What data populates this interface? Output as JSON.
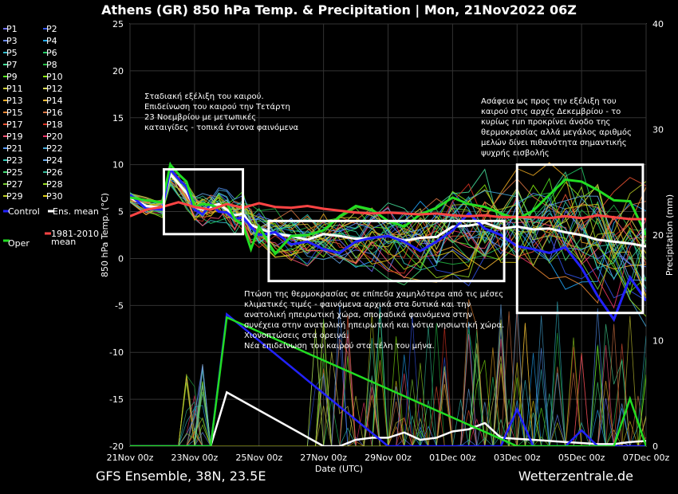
{
  "chart_data": {
    "type": "line",
    "title": "Athens  (GR)  850 hPa Temp. & Precipitation | Mon, 21Nov2022 06Z",
    "xlabel": "Date (UTC)",
    "ylabel": "850 hPa Temp. (°C)",
    "y2label": "Precipitation (mm)",
    "xlim": [
      0,
      16
    ],
    "ylim": [
      -20,
      25
    ],
    "y2lim": [
      0,
      40
    ],
    "xticks": [
      "21Nov 00z",
      "23Nov 00z",
      "25Nov 00z",
      "27Nov 00z",
      "29Nov 00z",
      "01Dec 00z",
      "03Dec 00z",
      "05Dec 00z",
      "07Dec 00z"
    ],
    "yticks": [
      25,
      20,
      15,
      10,
      5,
      0,
      -5,
      -10,
      -15,
      -20
    ],
    "y2ticks": [
      40,
      30,
      20,
      10,
      0
    ],
    "legend": [
      {
        "label": "P1",
        "color": "#7070ff"
      },
      {
        "label": "P2",
        "color": "#3355ee"
      },
      {
        "label": "P3",
        "color": "#6688ff"
      },
      {
        "label": "P4",
        "color": "#22aaff"
      },
      {
        "label": "P5",
        "color": "#33bbcc"
      },
      {
        "label": "P6",
        "color": "#22cc66"
      },
      {
        "label": "P7",
        "color": "#44dd99"
      },
      {
        "label": "P8",
        "color": "#22bb44"
      },
      {
        "label": "P9",
        "color": "#55ee22"
      },
      {
        "label": "P10",
        "color": "#88ee11"
      },
      {
        "label": "P11",
        "color": "#cccc33"
      },
      {
        "label": "P12",
        "color": "#dddd55"
      },
      {
        "label": "P13",
        "color": "#eeaa22"
      },
      {
        "label": "P14",
        "color": "#ffbb33"
      },
      {
        "label": "P15",
        "color": "#ee8833"
      },
      {
        "label": "P16",
        "color": "#dd7744"
      },
      {
        "label": "P17",
        "color": "#ee5533"
      },
      {
        "label": "P18",
        "color": "#dd3322"
      },
      {
        "label": "P19",
        "color": "#ff5577"
      },
      {
        "label": "P20",
        "color": "#ee3366"
      },
      {
        "label": "P21",
        "color": "#5599ff"
      },
      {
        "label": "P22",
        "color": "#44aadd"
      },
      {
        "label": "P23",
        "color": "#33ccbb"
      },
      {
        "label": "P24",
        "color": "#66aaee"
      },
      {
        "label": "P25",
        "color": "#44dd77"
      },
      {
        "label": "P26",
        "color": "#33bb99"
      },
      {
        "label": "P27",
        "color": "#77cc33"
      },
      {
        "label": "P28",
        "color": "#99dd22"
      },
      {
        "label": "P29",
        "color": "#bbcc22"
      },
      {
        "label": "P30",
        "color": "#ddcc11"
      },
      {
        "label": "Control",
        "color": "#2222ff"
      },
      {
        "label": "Ens. mean",
        "color": "#ffffff"
      },
      {
        "label": "Oper",
        "color": "#22dd22"
      },
      {
        "label": "1981-2010 mean",
        "color": "#ff4444"
      }
    ],
    "series": [
      {
        "name": "Ens. mean",
        "color": "#ffffff",
        "width": 3,
        "x": [
          0,
          0.5,
          1,
          1.25,
          1.5,
          1.75,
          2,
          2.25,
          2.5,
          2.75,
          3,
          3.25,
          3.5,
          3.75,
          4,
          4.5,
          5,
          5.5,
          6,
          6.5,
          7,
          7.5,
          8,
          8.5,
          9,
          9.5,
          10,
          10.5,
          11,
          11.5,
          12,
          12.5,
          13,
          13.5,
          14,
          14.5,
          15,
          15.5,
          16
        ],
        "y": [
          6.5,
          5.6,
          5.4,
          9,
          8,
          7,
          5.5,
          5.2,
          5.5,
          5.8,
          5.2,
          4.6,
          4.8,
          3.6,
          3.2,
          2.6,
          2.4,
          2,
          2.6,
          2.4,
          2.1,
          2.2,
          2.4,
          1.9,
          2.2,
          2.3,
          3.4,
          3.5,
          3.8,
          3.2,
          3.4,
          3.1,
          3.2,
          2.8,
          2.5,
          2,
          1.8,
          1.6,
          1.3
        ]
      },
      {
        "name": "Control",
        "color": "#2222ff",
        "width": 3,
        "x": [
          0,
          0.5,
          1,
          1.25,
          1.5,
          1.75,
          2,
          2.25,
          2.5,
          2.75,
          3,
          3.25,
          3.5,
          3.75,
          4,
          4.5,
          5,
          5.5,
          6,
          6.5,
          7,
          7.5,
          8,
          8.5,
          9,
          9.5,
          10,
          10.5,
          11,
          11.5,
          12,
          12.5,
          13,
          13.5,
          14,
          14.5,
          15,
          15.5,
          16
        ],
        "y": [
          6.8,
          5.3,
          5.2,
          9.5,
          8.5,
          7.6,
          5.2,
          4.7,
          5.8,
          5,
          4.9,
          4.2,
          4.4,
          3.4,
          2.5,
          2.8,
          1.5,
          1.8,
          1,
          0.6,
          1.8,
          2.2,
          2.4,
          1.8,
          0.8,
          1.8,
          3,
          4.8,
          3.2,
          2.5,
          1.3,
          1,
          0.6,
          1.2,
          -1,
          -4,
          -6.5,
          -2,
          -4.5
        ]
      },
      {
        "name": "Oper",
        "color": "#22dd22",
        "width": 3,
        "x": [
          0,
          0.5,
          1,
          1.25,
          1.5,
          1.75,
          2,
          2.25,
          2.5,
          2.75,
          3,
          3.25,
          3.5,
          3.75,
          4,
          4.5,
          5,
          5.5,
          6,
          6.5,
          7,
          7.5,
          8,
          8.5,
          9,
          9.5,
          10,
          10.5,
          11,
          11.5,
          12,
          12.5,
          13,
          13.5,
          14,
          14.5,
          15,
          15.5,
          16
        ],
        "y": [
          6.5,
          6.2,
          6,
          10,
          9,
          8.2,
          5.5,
          5.8,
          5.7,
          5.4,
          5.9,
          4.2,
          3.6,
          1,
          3.4,
          0.5,
          2.4,
          2.5,
          3,
          4.5,
          5.6,
          5.2,
          4,
          3.4,
          4.7,
          5.4,
          6.5,
          5.8,
          5.5,
          4.8,
          4.2,
          5.1,
          6.8,
          8.4,
          8.2,
          7.3,
          6.2,
          6.1,
          2.5
        ]
      },
      {
        "name": "1981-2010 mean",
        "color": "#ff4444",
        "width": 3,
        "x": [
          0,
          0.5,
          1,
          1.5,
          2,
          2.5,
          3,
          3.5,
          4,
          4.5,
          5,
          5.5,
          6,
          6.5,
          7,
          7.5,
          8,
          8.5,
          9,
          9.5,
          10,
          10.5,
          11,
          11.5,
          12,
          12.5,
          13,
          13.5,
          14,
          14.5,
          15,
          15.5,
          16
        ],
        "y": [
          4.5,
          5.2,
          5.5,
          6,
          5.5,
          5.2,
          5.8,
          5.4,
          5.9,
          5.5,
          5.4,
          5.6,
          5.3,
          5.1,
          4.9,
          4.8,
          4.9,
          4.8,
          4.7,
          4.8,
          4.6,
          4.5,
          4.6,
          4.4,
          4.4,
          4.4,
          4.3,
          4.5,
          4.3,
          4.6,
          4.4,
          4.2,
          4.2
        ]
      }
    ],
    "precipitation": [
      {
        "name": "Ens. mean",
        "color": "#ffffff",
        "x": [
          0,
          1,
          1.5,
          2,
          2.5,
          3,
          6,
          6.5,
          7,
          7.5,
          8,
          8.5,
          9,
          9.5,
          10,
          10.5,
          11,
          11.5,
          12,
          12.5,
          13,
          13.5,
          14,
          14.5,
          15,
          15.5,
          16
        ],
        "y": [
          0,
          0,
          0,
          0,
          0,
          5.1,
          0,
          0,
          0.6,
          0.8,
          0.8,
          1.3,
          0.6,
          0.8,
          1.4,
          1.6,
          2.2,
          0.8,
          0.7,
          0.6,
          0.5,
          0.4,
          0.3,
          0.2,
          0.2,
          0.4,
          0.5
        ]
      },
      {
        "name": "Control",
        "color": "#2222ff",
        "x": [
          0,
          1,
          1.5,
          2,
          2.5,
          3,
          8,
          8.5,
          9,
          9.5,
          10,
          10.5,
          11,
          11.5,
          12,
          12.5,
          13,
          13.5,
          14,
          14.5,
          15,
          15.5,
          16
        ],
        "y": [
          0,
          0,
          0,
          0,
          0,
          12.5,
          0,
          0,
          0,
          0,
          0,
          0,
          0,
          0,
          3.5,
          0,
          0,
          0,
          1.5,
          0,
          0,
          0,
          0
        ]
      },
      {
        "name": "Oper",
        "color": "#22dd22",
        "x": [
          0,
          1,
          1.5,
          2,
          2.5,
          3,
          12,
          12.5,
          13,
          13.5,
          14,
          14.5,
          15,
          15.5,
          16
        ],
        "y": [
          0,
          0,
          0,
          0,
          0,
          12.2,
          0,
          0,
          0,
          0,
          0,
          0,
          0,
          4.5,
          0
        ]
      }
    ],
    "annotations": [
      "Σταδιακή εξέλιξη του καιρού.",
      "Επιδείνωση του καιρού την Τετάρτη",
      "23 Νοεμβρίου με μετωπικές",
      "καταιγίδες - τοπικά έντονα φαινόμενα",
      "Πτώση της θερμοκρασίας σε επίπεδα χαμηλότερα από τις μέσες",
      "κλιματικές τιμές - φαινόμενα αρχικά στα δυτικά και την",
      "ανατολική ηπειρωτική χώρα, σποραδικά φαινόμενα στην",
      "συνέχεια στην ανατολική ηπειρωτική και νότια νησιωτική χώρα.",
      "Χιονοπτώσεις στα ορεινά.",
      "Νέα επιδείνωση του καιρού στα τέλη του μήνα.",
      "Ασάφεια ως προς την εξέλιξη του",
      "καιρού στις αρχές Δεκεμβρίου - το",
      "κυρίως run προκρίνει άνοδο της",
      "θερμοκρασίας αλλά μεγάλος αριθμός",
      "μελών δίνει πιθανότητα σημαντικής",
      "ψυχρής εισβολής"
    ],
    "grid": true,
    "legend_position": "left"
  },
  "footer": {
    "left": "GFS Ensemble, 38N, 23.5E",
    "right": "Wetterzentrale.de"
  }
}
